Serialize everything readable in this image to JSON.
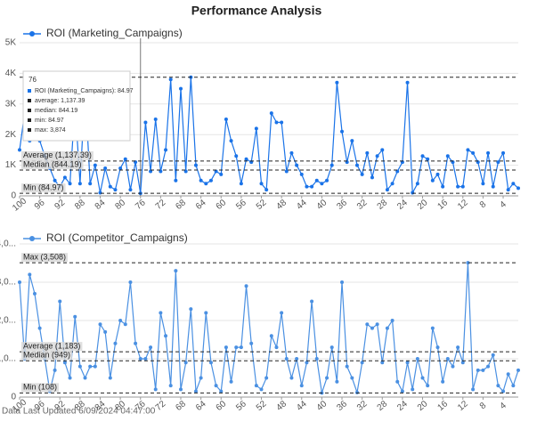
{
  "title": "Performance Analysis",
  "footer": "Data Last Updated 6/09/2024 04:47:00",
  "tooltip": {
    "header": "76",
    "lines": [
      "ROI (Marketing_Campaigns): 84.97",
      "average: 1,137.39",
      "median: 844.19",
      "min: 84.97",
      "max: 3,874"
    ]
  },
  "chart_data": [
    {
      "type": "line",
      "x": [
        100,
        99,
        98,
        97,
        96,
        95,
        94,
        93,
        92,
        91,
        90,
        89,
        88,
        87,
        86,
        85,
        84,
        83,
        82,
        81,
        80,
        79,
        78,
        77,
        76,
        75,
        74,
        73,
        72,
        71,
        70,
        69,
        68,
        67,
        66,
        65,
        64,
        63,
        62,
        61,
        60,
        59,
        58,
        57,
        56,
        55,
        54,
        53,
        52,
        51,
        50,
        49,
        48,
        47,
        46,
        45,
        44,
        43,
        42,
        41,
        40,
        39,
        38,
        37,
        36,
        35,
        34,
        33,
        32,
        31,
        30,
        29,
        28,
        27,
        26,
        25,
        24,
        23,
        22,
        21,
        20,
        19,
        18,
        17,
        16,
        15,
        14,
        13,
        12,
        11,
        10,
        9,
        8,
        7,
        6,
        5,
        4,
        3,
        2,
        1
      ],
      "series": [
        {
          "name": "ROI (Marketing_Campaigns)",
          "color": "#1a73e8",
          "values": [
            1500,
            2700,
            1800,
            2100,
            1800,
            1300,
            900,
            500,
            300,
            600,
            400,
            3000,
            400,
            3500,
            400,
            1000,
            100,
            900,
            300,
            200,
            900,
            1200,
            200,
            1100,
            84.97,
            2400,
            800,
            2500,
            800,
            1500,
            3800,
            500,
            3500,
            800,
            3874,
            1000,
            500,
            400,
            500,
            800,
            700,
            2500,
            1800,
            1300,
            400,
            1200,
            1100,
            2200,
            400,
            200,
            2700,
            2400,
            2400,
            800,
            1400,
            1000,
            700,
            300,
            300,
            500,
            400,
            500,
            1000,
            3700,
            2100,
            1100,
            1800,
            1000,
            700,
            1400,
            600,
            1300,
            1500,
            200,
            400,
            800,
            1100,
            3700,
            100,
            400,
            1300,
            1200,
            500,
            700,
            300,
            1300,
            1100,
            300,
            300,
            1500,
            1400,
            1100,
            400,
            1400,
            300,
            1100,
            1400,
            200,
            400,
            250
          ]
        }
      ],
      "xlim": [
        100,
        1
      ],
      "xticks": [
        100,
        96,
        92,
        88,
        84,
        80,
        76,
        72,
        68,
        64,
        60,
        56,
        52,
        48,
        44,
        40,
        36,
        32,
        28,
        24,
        20,
        16,
        12,
        8,
        4
      ],
      "ylim": [
        0,
        5000
      ],
      "yticks": [
        {
          "value": 0,
          "label": "0"
        },
        {
          "value": 1000,
          "label": "1K"
        },
        {
          "value": 2000,
          "label": "2K"
        },
        {
          "value": 3000,
          "label": "3K"
        },
        {
          "value": 4000,
          "label": "4K"
        },
        {
          "value": 5000,
          "label": "5K"
        }
      ],
      "ref_lines": [
        {
          "value": 3874
        },
        {
          "value": 1137.39,
          "label": "Average (1,137.39)"
        },
        {
          "value": 844.19,
          "label": "Median (844.19)"
        },
        {
          "value": 84.97,
          "label": "Min (84.97)"
        }
      ],
      "crosshair_x": 76
    },
    {
      "type": "line",
      "x": [
        100,
        99,
        98,
        97,
        96,
        95,
        94,
        93,
        92,
        91,
        90,
        89,
        88,
        87,
        86,
        85,
        84,
        83,
        82,
        81,
        80,
        79,
        78,
        77,
        76,
        75,
        74,
        73,
        72,
        71,
        70,
        69,
        68,
        67,
        66,
        65,
        64,
        63,
        62,
        61,
        60,
        59,
        58,
        57,
        56,
        55,
        54,
        53,
        52,
        51,
        50,
        49,
        48,
        47,
        46,
        45,
        44,
        43,
        42,
        41,
        40,
        39,
        38,
        37,
        36,
        35,
        34,
        33,
        32,
        31,
        30,
        29,
        28,
        27,
        26,
        25,
        24,
        23,
        22,
        21,
        20,
        19,
        18,
        17,
        16,
        15,
        14,
        13,
        12,
        11,
        10,
        9,
        8,
        7,
        6,
        5,
        4,
        3,
        2,
        1
      ],
      "series": [
        {
          "name": "ROI (Competitor_Campaigns)",
          "color": "#4a90e2",
          "values": [
            3000,
            1000,
            3200,
            2700,
            1800,
            1000,
            150,
            700,
            2500,
            900,
            500,
            2100,
            800,
            500,
            800,
            800,
            1900,
            1700,
            500,
            1400,
            2000,
            1900,
            3000,
            1400,
            1000,
            1000,
            1300,
            200,
            2200,
            1600,
            300,
            3300,
            200,
            900,
            2300,
            150,
            500,
            2200,
            900,
            300,
            150,
            1300,
            400,
            1300,
            1300,
            2900,
            1400,
            300,
            200,
            500,
            1600,
            1300,
            2200,
            1000,
            500,
            1000,
            300,
            900,
            2500,
            1000,
            108,
            500,
            1300,
            400,
            3000,
            800,
            500,
            120,
            900,
            1900,
            1800,
            1900,
            900,
            1800,
            2000,
            400,
            150,
            900,
            200,
            1000,
            500,
            300,
            1800,
            1300,
            400,
            1000,
            800,
            1300,
            900,
            3508,
            200,
            700,
            700,
            800,
            1100,
            300,
            150,
            600,
            300,
            700
          ]
        }
      ],
      "xlim": [
        100,
        1
      ],
      "xticks": [
        100,
        96,
        92,
        88,
        84,
        80,
        76,
        72,
        68,
        64,
        60,
        56,
        52,
        48,
        44,
        40,
        36,
        32,
        28,
        24,
        20,
        16,
        12,
        8,
        4
      ],
      "ylim": [
        0,
        4000
      ],
      "yticks": [
        {
          "value": 0,
          "label": "0"
        },
        {
          "value": 1000,
          "label": "1,0..."
        },
        {
          "value": 2000,
          "label": "2,0..."
        },
        {
          "value": 3000,
          "label": "3,0..."
        },
        {
          "value": 4000,
          "label": "4,0..."
        }
      ],
      "ref_lines": [
        {
          "value": 3508,
          "label": "Max (3,508)"
        },
        {
          "value": 1183,
          "label": "Average (1,183)"
        },
        {
          "value": 949,
          "label": "Median (949)"
        },
        {
          "value": 108,
          "label": "Min (108)"
        }
      ]
    }
  ]
}
